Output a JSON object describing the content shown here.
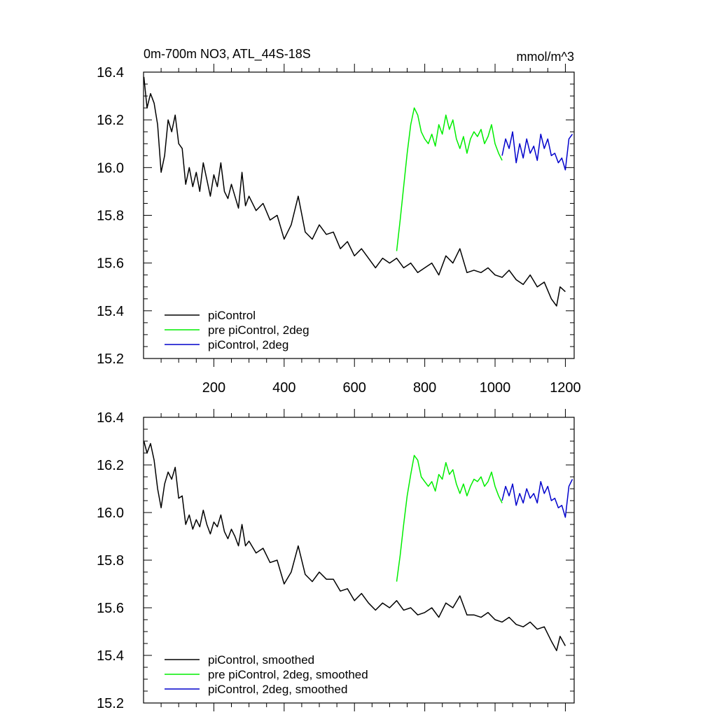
{
  "chart_data": [
    {
      "type": "line",
      "title": "0m-700m NO3, ATL_44S-18S",
      "units": "mmol/m^3",
      "xlim": [
        0,
        1225
      ],
      "ylim": [
        15.2,
        16.4
      ],
      "yticks": [
        15.2,
        15.4,
        15.6,
        15.8,
        16.0,
        16.2,
        16.4
      ],
      "xticks": [
        200,
        400,
        600,
        800,
        1000,
        1200
      ],
      "legend_position": "bottom-left",
      "series": [
        {
          "name": "piControl",
          "color": "#000000",
          "x": [
            1,
            10,
            20,
            30,
            40,
            50,
            60,
            70,
            80,
            90,
            100,
            110,
            120,
            130,
            140,
            150,
            160,
            170,
            180,
            190,
            200,
            210,
            220,
            230,
            240,
            250,
            260,
            270,
            280,
            290,
            300,
            320,
            340,
            360,
            380,
            400,
            420,
            440,
            460,
            480,
            500,
            520,
            540,
            560,
            580,
            600,
            620,
            640,
            660,
            680,
            700,
            720,
            740,
            760,
            780,
            800,
            820,
            840,
            860,
            880,
            900,
            920,
            940,
            960,
            980,
            1000,
            1020,
            1040,
            1060,
            1080,
            1100,
            1120,
            1140,
            1160,
            1175,
            1185,
            1200
          ],
          "y": [
            16.38,
            16.25,
            16.31,
            16.27,
            16.18,
            15.98,
            16.05,
            16.2,
            16.15,
            16.22,
            16.1,
            16.08,
            15.93,
            16.0,
            15.92,
            15.98,
            15.9,
            16.02,
            15.95,
            15.88,
            15.97,
            15.92,
            16.02,
            15.9,
            15.87,
            15.93,
            15.88,
            15.83,
            15.98,
            15.84,
            15.88,
            15.82,
            15.85,
            15.78,
            15.8,
            15.7,
            15.76,
            15.88,
            15.73,
            15.7,
            15.76,
            15.72,
            15.73,
            15.66,
            15.69,
            15.63,
            15.66,
            15.62,
            15.58,
            15.62,
            15.6,
            15.62,
            15.58,
            15.6,
            15.56,
            15.58,
            15.6,
            15.55,
            15.63,
            15.6,
            15.66,
            15.56,
            15.57,
            15.56,
            15.58,
            15.55,
            15.54,
            15.57,
            15.53,
            15.51,
            15.55,
            15.5,
            15.52,
            15.45,
            15.42,
            15.5,
            15.48
          ]
        },
        {
          "name": "pre piControl, 2deg",
          "color": "#00ee00",
          "x": [
            720,
            730,
            740,
            750,
            760,
            770,
            780,
            790,
            800,
            810,
            820,
            830,
            840,
            850,
            860,
            870,
            880,
            890,
            900,
            910,
            920,
            930,
            940,
            950,
            960,
            970,
            980,
            990,
            1000,
            1010,
            1020
          ],
          "y": [
            15.65,
            15.78,
            15.92,
            16.06,
            16.18,
            16.25,
            16.22,
            16.15,
            16.12,
            16.1,
            16.14,
            16.09,
            16.18,
            16.14,
            16.22,
            16.16,
            16.2,
            16.12,
            16.08,
            16.13,
            16.06,
            16.12,
            16.15,
            16.13,
            16.16,
            16.1,
            16.13,
            16.18,
            16.1,
            16.06,
            16.03
          ]
        },
        {
          "name": "piControl, 2deg",
          "color": "#0000cc",
          "x": [
            1020,
            1030,
            1040,
            1050,
            1060,
            1070,
            1080,
            1090,
            1100,
            1110,
            1120,
            1130,
            1140,
            1150,
            1160,
            1170,
            1180,
            1190,
            1200,
            1210,
            1220
          ],
          "y": [
            16.05,
            16.12,
            16.08,
            16.15,
            16.02,
            16.1,
            16.04,
            16.12,
            16.06,
            16.09,
            16.03,
            16.14,
            16.08,
            16.12,
            16.05,
            16.06,
            16.02,
            16.04,
            15.99,
            16.12,
            16.14
          ]
        }
      ]
    },
    {
      "type": "line",
      "xlim": [
        0,
        1225
      ],
      "ylim": [
        15.2,
        16.4
      ],
      "yticks": [
        15.2,
        15.4,
        15.6,
        15.8,
        16.0,
        16.2,
        16.4
      ],
      "legend_position": "bottom-left",
      "series": [
        {
          "name": "piControl, smoothed",
          "color": "#000000",
          "x": [
            1,
            10,
            20,
            30,
            40,
            50,
            60,
            70,
            80,
            90,
            100,
            110,
            120,
            130,
            140,
            150,
            160,
            170,
            180,
            190,
            200,
            210,
            220,
            230,
            240,
            250,
            260,
            270,
            280,
            290,
            300,
            320,
            340,
            360,
            380,
            400,
            420,
            440,
            460,
            480,
            500,
            520,
            540,
            560,
            580,
            600,
            620,
            640,
            660,
            680,
            700,
            720,
            740,
            760,
            780,
            800,
            820,
            840,
            860,
            880,
            900,
            920,
            940,
            960,
            980,
            1000,
            1020,
            1040,
            1060,
            1080,
            1100,
            1120,
            1140,
            1160,
            1175,
            1185,
            1200
          ],
          "y": [
            16.3,
            16.25,
            16.29,
            16.22,
            16.1,
            16.02,
            16.12,
            16.17,
            16.14,
            16.19,
            16.06,
            16.07,
            15.95,
            15.99,
            15.93,
            15.97,
            15.94,
            16.01,
            15.95,
            15.91,
            15.96,
            15.94,
            15.99,
            15.92,
            15.89,
            15.93,
            15.9,
            15.86,
            15.95,
            15.86,
            15.88,
            15.83,
            15.85,
            15.79,
            15.8,
            15.7,
            15.75,
            15.86,
            15.74,
            15.71,
            15.75,
            15.72,
            15.72,
            15.67,
            15.68,
            15.63,
            15.66,
            15.62,
            15.59,
            15.62,
            15.6,
            15.63,
            15.59,
            15.6,
            15.57,
            15.58,
            15.6,
            15.56,
            15.62,
            15.6,
            15.65,
            15.57,
            15.57,
            15.56,
            15.58,
            15.55,
            15.54,
            15.56,
            15.53,
            15.52,
            15.54,
            15.51,
            15.52,
            15.46,
            15.42,
            15.48,
            15.44
          ]
        },
        {
          "name": "pre piControl, 2deg, smoothed",
          "color": "#00ee00",
          "x": [
            720,
            730,
            740,
            750,
            760,
            770,
            780,
            790,
            800,
            810,
            820,
            830,
            840,
            850,
            860,
            870,
            880,
            890,
            900,
            910,
            920,
            930,
            940,
            950,
            960,
            970,
            980,
            990,
            1000,
            1010,
            1020
          ],
          "y": [
            15.71,
            15.82,
            15.95,
            16.07,
            16.16,
            16.24,
            16.22,
            16.15,
            16.13,
            16.11,
            16.13,
            16.09,
            16.16,
            16.14,
            16.21,
            16.16,
            16.18,
            16.12,
            16.08,
            16.12,
            16.07,
            16.11,
            16.14,
            16.13,
            16.15,
            16.11,
            16.13,
            16.17,
            16.11,
            16.07,
            16.04
          ]
        },
        {
          "name": "piControl, 2deg, smoothed",
          "color": "#0000cc",
          "x": [
            1020,
            1030,
            1040,
            1050,
            1060,
            1070,
            1080,
            1090,
            1100,
            1110,
            1120,
            1130,
            1140,
            1150,
            1160,
            1170,
            1180,
            1190,
            1200,
            1210,
            1220
          ],
          "y": [
            16.05,
            16.11,
            16.07,
            16.12,
            16.03,
            16.08,
            16.04,
            16.1,
            16.06,
            16.08,
            16.04,
            16.13,
            16.08,
            16.11,
            16.05,
            16.06,
            16.02,
            16.03,
            15.98,
            16.11,
            16.14
          ]
        }
      ]
    }
  ]
}
